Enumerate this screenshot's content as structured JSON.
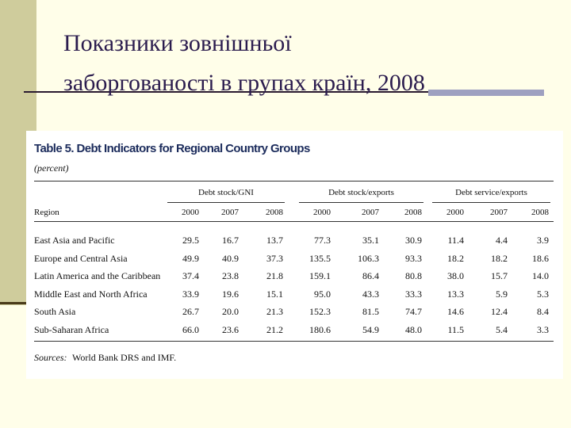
{
  "slide": {
    "title_line1": "Показники зовнішньої",
    "title_line2": "заборгованості в групах країн,   2008"
  },
  "table": {
    "title": "Table 5. Debt Indicators for Regional Country Groups",
    "subtitle": "(percent)",
    "groups": [
      "Debt stock/GNI",
      "Debt stock/exports",
      "Debt service/exports"
    ],
    "region_header": "Region",
    "years": [
      "2000",
      "2007",
      "2008",
      "2000",
      "2007",
      "2008",
      "2000",
      "2007",
      "2008"
    ],
    "rows": [
      [
        "East Asia and Pacific",
        "29.5",
        "16.7",
        "13.7",
        "77.3",
        "35.1",
        "30.9",
        "11.4",
        "4.4",
        "3.9"
      ],
      [
        "Europe and Central Asia",
        "49.9",
        "40.9",
        "37.3",
        "135.5",
        "106.3",
        "93.3",
        "18.2",
        "18.2",
        "18.6"
      ],
      [
        "Latin America and the Caribbean",
        "37.4",
        "23.8",
        "21.8",
        "159.1",
        "86.4",
        "80.8",
        "38.0",
        "15.7",
        "14.0"
      ],
      [
        "Middle East and North Africa",
        "33.9",
        "19.6",
        "15.1",
        "95.0",
        "43.3",
        "33.3",
        "13.3",
        "5.9",
        "5.3"
      ],
      [
        "South Asia",
        "26.7",
        "20.0",
        "21.3",
        "152.3",
        "81.5",
        "74.7",
        "14.6",
        "12.4",
        "8.4"
      ],
      [
        "Sub-Saharan Africa",
        "66.0",
        "23.6",
        "21.2",
        "180.6",
        "54.9",
        "48.0",
        "11.5",
        "5.4",
        "3.3"
      ]
    ],
    "sources_label": "Sources:",
    "sources_text": "World Bank DRS and IMF."
  }
}
